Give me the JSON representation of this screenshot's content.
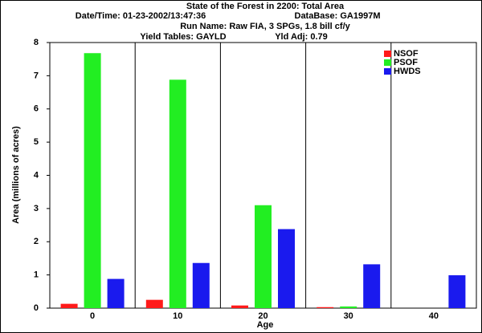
{
  "chart_data": {
    "type": "bar",
    "title": "State of the Forest in 2200: Total Area",
    "datetime": "Date/Time: 01-23-2002/13:47:36",
    "database": "DataBase: GA1997M",
    "run_name": "Run Name: Raw FIA, 3 SPGs, 1.8 bill cf/y",
    "yield_tables": "Yield Tables: GAYLD",
    "yld_adj": "Yld Adj: 0.79",
    "x_label": "Age",
    "y_label": "Area (millions of acres)",
    "categories": [
      "0",
      "10",
      "20",
      "30",
      "40"
    ],
    "series": [
      {
        "name": "NSOF",
        "color": "#ff1a1a",
        "values": [
          0.13,
          0.25,
          0.08,
          0.03,
          0
        ]
      },
      {
        "name": "PSOF",
        "color": "#22ee22",
        "values": [
          7.68,
          6.88,
          3.1,
          0.05,
          0
        ]
      },
      {
        "name": "HWDS",
        "color": "#1a1aee",
        "values": [
          0.88,
          1.36,
          2.38,
          1.32,
          0.99
        ]
      }
    ],
    "ylim": [
      0,
      8
    ],
    "yticks": [
      0,
      1,
      2,
      3,
      4,
      5,
      6,
      7,
      8
    ],
    "legend": "top-right"
  }
}
